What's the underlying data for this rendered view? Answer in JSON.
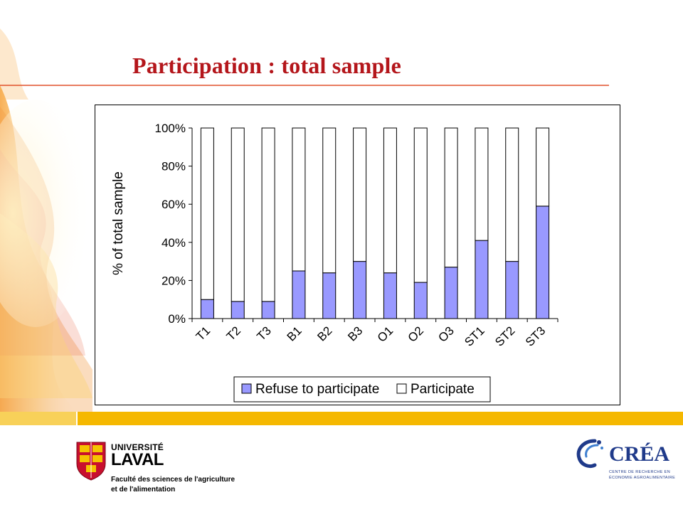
{
  "slide": {
    "title": "Participation : total sample",
    "title_color": "#b4161b",
    "accent_line_color": "#e0502a",
    "footer_band_color": "#f5b800"
  },
  "logos": {
    "left": {
      "univ": "UNIVERSITÉ",
      "laval": "LAVAL",
      "faculty_line1": "Faculté des sciences de l'agriculture",
      "faculty_line2": "et de l'alimentation"
    },
    "right": {
      "name": "CRÉA",
      "sub_line1": "CENTRE DE RECHERCHE EN",
      "sub_line2": "ÉCONOMIE AGROALIMENTAIRE"
    }
  },
  "chart_data": {
    "type": "bar",
    "stacked": true,
    "categories": [
      "T1",
      "T2",
      "T3",
      "B1",
      "B2",
      "B3",
      "O1",
      "O2",
      "O3",
      "ST1",
      "ST2",
      "ST3"
    ],
    "series": [
      {
        "name": "Refuse to participate",
        "color": "#9999ff",
        "values": [
          10,
          9,
          9,
          25,
          24,
          30,
          24,
          19,
          27,
          41,
          30,
          59
        ]
      },
      {
        "name": "Participate",
        "color": "#ffffff",
        "values": [
          90,
          91,
          91,
          75,
          76,
          70,
          76,
          81,
          73,
          59,
          70,
          41
        ]
      }
    ],
    "ylabel": "% of total sample",
    "yticks": [
      "0%",
      "20%",
      "40%",
      "60%",
      "80%",
      "100%"
    ],
    "ylim": [
      0,
      100
    ],
    "grid": false,
    "legend_position": "bottom"
  }
}
